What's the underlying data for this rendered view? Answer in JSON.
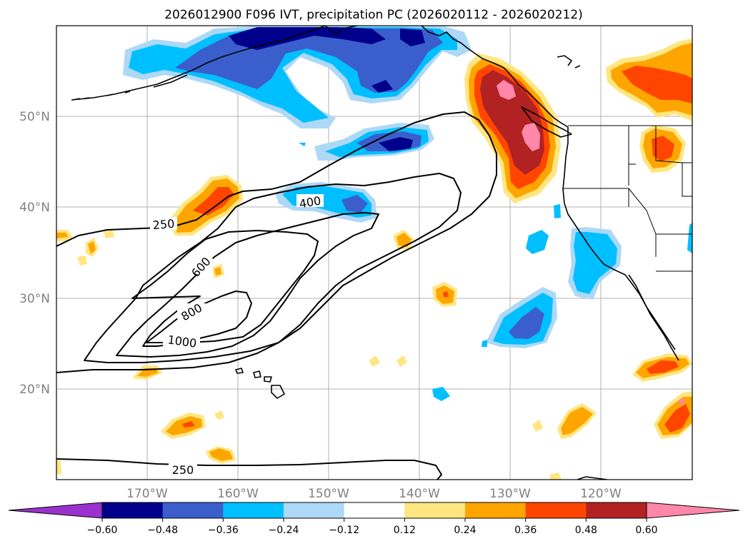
{
  "title": "2026012900 F096 IVT, precipitation PC (2026020112 - 2026020212)",
  "lat_labels": [
    "50°N",
    "40°N",
    "30°N",
    "20°N"
  ],
  "lon_labels": [
    "170°W",
    "160°W",
    "150°W",
    "140°W",
    "130°W",
    "120°W"
  ],
  "colorbar": {
    "ticks": [
      "−0.60",
      "−0.48",
      "−0.36",
      "−0.24",
      "−0.12",
      "0.12",
      "0.24",
      "0.36",
      "0.48",
      "0.60"
    ],
    "colors": [
      "#9932cc",
      "#00008b",
      "#3a5fcd",
      "#00bfff",
      "#add8f7",
      "#ffffff",
      "#ffe680",
      "#ffa500",
      "#ff4500",
      "#b22222",
      "#ff88aa"
    ]
  },
  "ivt_contour_labels": {
    "c250_north": "250",
    "c400": "400",
    "c600": "600",
    "c800": "800",
    "c1000": "1000",
    "c250_south": "250"
  }
}
